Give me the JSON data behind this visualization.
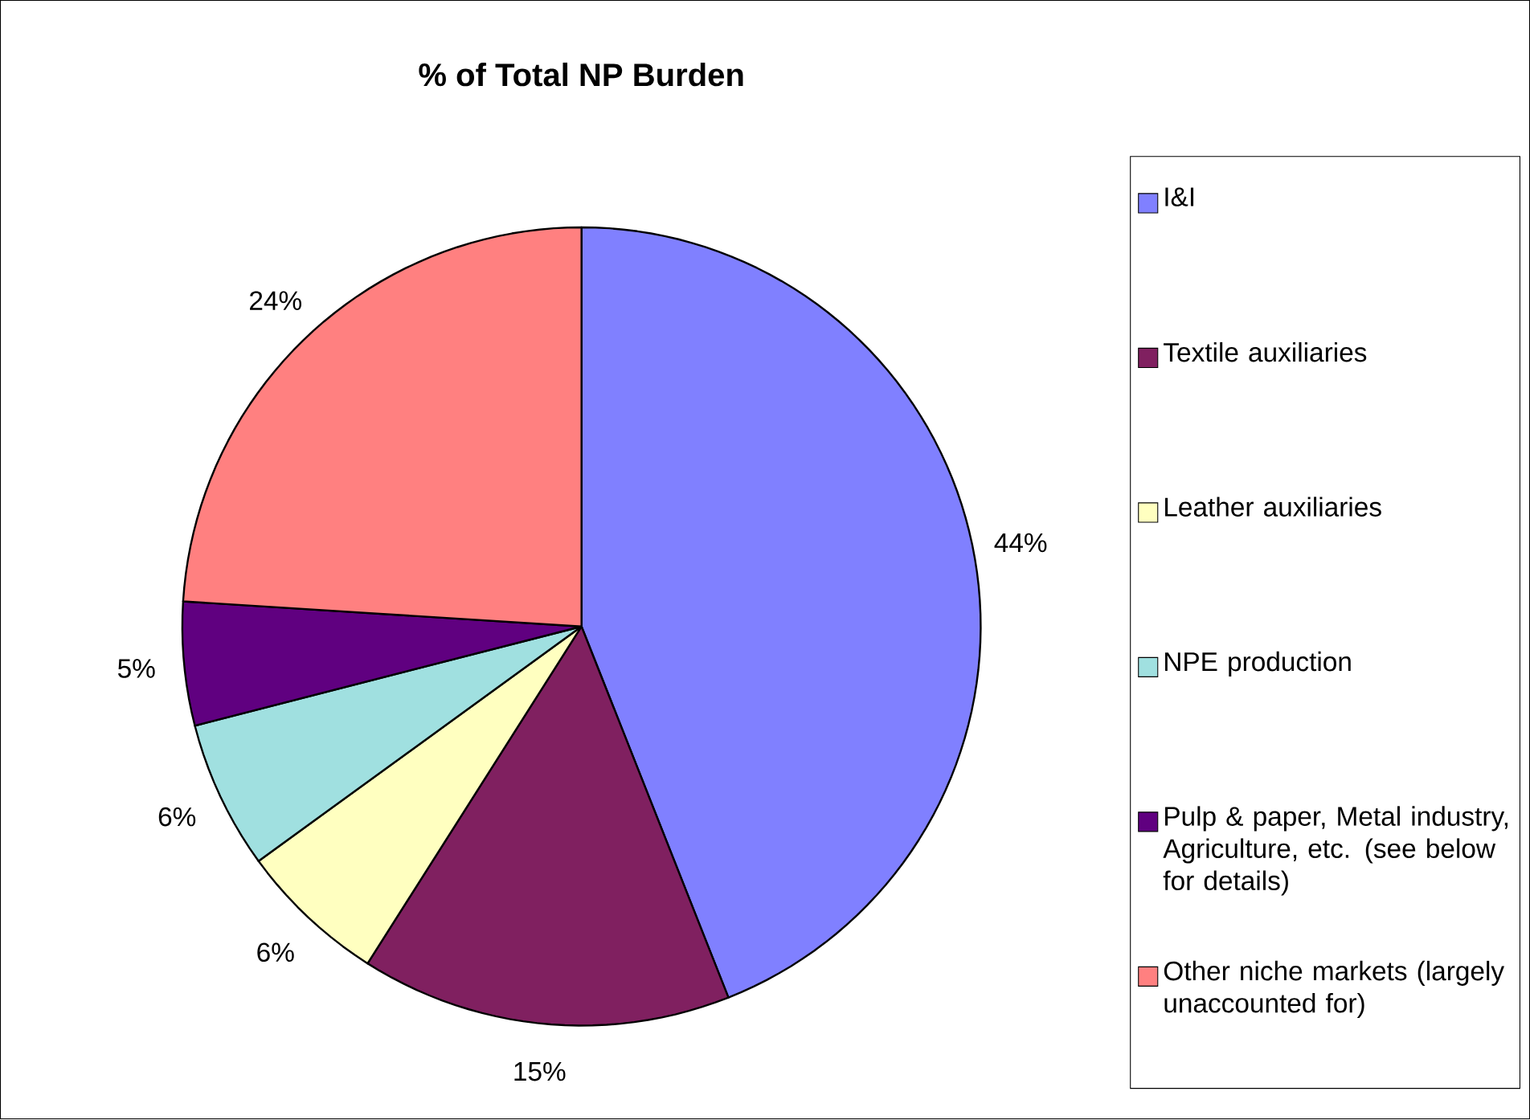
{
  "chart_data": {
    "type": "pie",
    "title": "% of Total NP Burden",
    "categories": [
      "I&I",
      "Textile auxiliaries",
      "Leather auxiliaries",
      "NPE production",
      "Pulp & paper, Metal industry, Agriculture, etc. (see below for details)",
      "Other niche markets (largely unaccounted for)"
    ],
    "values": [
      44,
      15,
      6,
      6,
      5,
      24
    ],
    "value_labels": [
      "44%",
      "15%",
      "6%",
      "6%",
      "5%",
      "24%"
    ],
    "colors": [
      "#8080ff",
      "#802060",
      "#ffffc0",
      "#a0e0e0",
      "#600080",
      "#ff8080"
    ],
    "legend": "right"
  }
}
